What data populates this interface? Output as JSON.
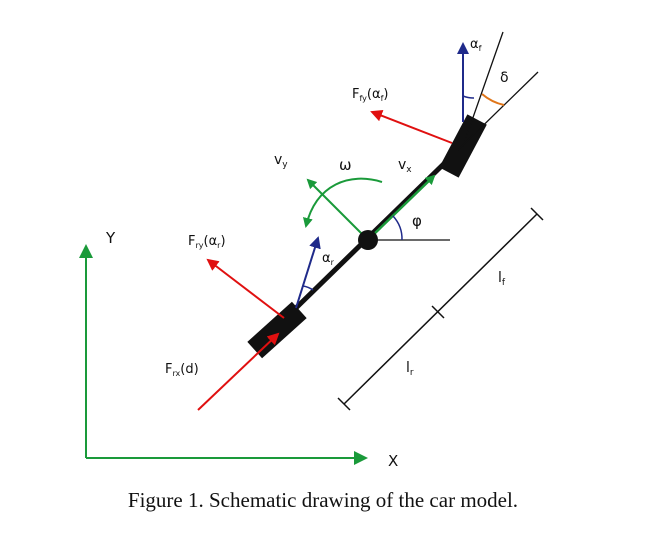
{
  "labels": {
    "alpha_f": "αf",
    "delta": "δ",
    "f_fy": "Ffy(αf)",
    "v_y": "vy",
    "omega": "ω",
    "v_x": "vx",
    "phi": "φ",
    "y_axis": "Y",
    "f_ry": "Fry(αr)",
    "alpha_r": "αr",
    "l_f": "lf",
    "l_r": "lr",
    "f_rx": "Frx(d)",
    "x_axis": "X"
  },
  "caption": "Figure 1. Schematic drawing of the car model.",
  "colors": {
    "green": "#1a9a3a",
    "red": "#e01010",
    "blue": "#1f2a8a",
    "orange": "#e0761a",
    "black": "#111111"
  }
}
